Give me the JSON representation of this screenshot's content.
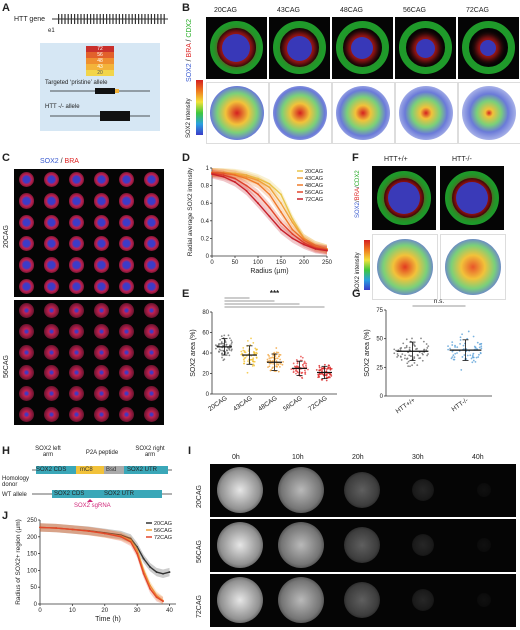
{
  "panels": {
    "A": {
      "letter": "A",
      "gene_label": "HTT gene",
      "exon_label": "e1",
      "cag_values": [
        "72",
        "56",
        "48",
        "43",
        "20"
      ],
      "allele_pristine": "Targeted ‘pristine’ allele",
      "allele_null": "HTT -/- allele"
    },
    "B": {
      "letter": "B",
      "columns": [
        "20CAG",
        "43CAG",
        "48CAG",
        "56CAG",
        "72CAG"
      ],
      "stain_sox2": "SOX2",
      "stain_bra": "BRA",
      "stain_cdx2": "CDX2",
      "heat_label": "SOX2 intensity"
    },
    "C": {
      "letter": "C",
      "stain_sox2": "SOX2",
      "stain_sep": " / ",
      "stain_bra": "BRA",
      "row_top": "20CAG",
      "row_bottom": "56CAG"
    },
    "D": {
      "letter": "D"
    },
    "E": {
      "letter": "E"
    },
    "F": {
      "letter": "F",
      "col1": "HTT+/+",
      "col2": "HTT-/-",
      "stain_sox2": "SOX2",
      "stain_bra": "BRA",
      "stain_cdx2": "CDX2",
      "heat_label": "SOX2 intensity"
    },
    "G": {
      "letter": "G"
    },
    "H": {
      "letter": "H",
      "left_arm": "SOX2 left arm",
      "p2a": "P2A peptide",
      "right_arm": "SOX2 right arm",
      "seg_cds": "SOX2 CDS",
      "seg_mc": "mC8",
      "seg_bsd": "Bsd",
      "seg_utr": "SOX2 UTR",
      "donor": "Homology donor",
      "wt": "WT allele",
      "wt_cds": "SOX2 CDS",
      "wt_utr": "SOX2 UTR",
      "sgrna": "SOX2 sgRNA"
    },
    "I": {
      "letter": "I",
      "times": [
        "0h",
        "10h",
        "20h",
        "30h",
        "40h"
      ],
      "rows": [
        "20CAG",
        "56CAG",
        "72CAG"
      ]
    },
    "J": {
      "letter": "J"
    }
  },
  "chart_data": [
    {
      "panel": "D",
      "type": "line",
      "xlabel": "Radius (µm)",
      "ylabel": "Radial average SOX2 intensity",
      "xlim": [
        0,
        250
      ],
      "ylim": [
        0,
        1.0
      ],
      "xticks": [
        0,
        50,
        100,
        150,
        200,
        250
      ],
      "yticks": [
        0,
        0.2,
        0.4,
        0.6,
        0.8,
        1.0
      ],
      "legend_position": "top-right",
      "series": [
        {
          "name": "20CAG",
          "color": "#e8c64a",
          "x": [
            0,
            25,
            50,
            75,
            100,
            125,
            150,
            175,
            200,
            225,
            250
          ],
          "y": [
            0.95,
            0.95,
            0.94,
            0.92,
            0.88,
            0.82,
            0.7,
            0.42,
            0.2,
            0.12,
            0.08
          ]
        },
        {
          "name": "43CAG",
          "color": "#f0a23a",
          "x": [
            0,
            25,
            50,
            75,
            100,
            125,
            150,
            175,
            200,
            225,
            250
          ],
          "y": [
            0.95,
            0.94,
            0.93,
            0.9,
            0.86,
            0.78,
            0.6,
            0.38,
            0.2,
            0.12,
            0.08
          ]
        },
        {
          "name": "48CAG",
          "color": "#ef7a2a",
          "x": [
            0,
            25,
            50,
            75,
            100,
            125,
            150,
            175,
            200,
            225,
            250
          ],
          "y": [
            0.95,
            0.94,
            0.92,
            0.88,
            0.82,
            0.7,
            0.5,
            0.3,
            0.18,
            0.1,
            0.07
          ]
        },
        {
          "name": "56CAG",
          "color": "#e2462a",
          "x": [
            0,
            25,
            50,
            75,
            100,
            125,
            150,
            175,
            200,
            225,
            250
          ],
          "y": [
            0.94,
            0.92,
            0.88,
            0.8,
            0.7,
            0.55,
            0.38,
            0.25,
            0.15,
            0.09,
            0.07
          ]
        },
        {
          "name": "72CAG",
          "color": "#c8202a",
          "x": [
            0,
            25,
            50,
            75,
            100,
            125,
            150,
            175,
            200,
            225,
            250
          ],
          "y": [
            0.93,
            0.9,
            0.84,
            0.74,
            0.6,
            0.45,
            0.3,
            0.2,
            0.13,
            0.08,
            0.06
          ]
        }
      ]
    },
    {
      "panel": "E",
      "type": "scatter",
      "ylabel": "SOX2 area (%)",
      "ylim": [
        0,
        80
      ],
      "yticks": [
        0,
        20,
        40,
        60,
        80
      ],
      "categories": [
        "20CAG",
        "43CAG",
        "48CAG",
        "56CAG",
        "72CAG"
      ],
      "means": [
        46,
        38,
        31,
        25,
        21
      ],
      "sds": [
        8,
        9,
        8,
        7,
        6
      ],
      "colors": [
        "#6b6b6b",
        "#f2c230",
        "#f3a33a",
        "#e84a4a",
        "#d82020"
      ],
      "significance": "***"
    },
    {
      "panel": "G",
      "type": "scatter",
      "ylabel": "SOX2 area (%)",
      "ylim": [
        0,
        75
      ],
      "yticks": [
        0,
        25,
        50,
        75
      ],
      "categories": [
        "HTT+/+",
        "HTT-/-"
      ],
      "means": [
        39,
        40
      ],
      "sds": [
        8,
        9
      ],
      "colors": [
        "#6b6b6b",
        "#5aa0d8"
      ],
      "significance": "n.s."
    },
    {
      "panel": "J",
      "type": "line",
      "xlabel": "Time (h)",
      "ylabel": "Radius of SOX2+ region (µm)",
      "xlim": [
        0,
        42
      ],
      "ylim": [
        0,
        250
      ],
      "xticks": [
        0,
        10,
        20,
        30,
        40
      ],
      "yticks": [
        0,
        50,
        100,
        150,
        200,
        250
      ],
      "legend_position": "top-right",
      "series": [
        {
          "name": "20CAG",
          "color": "#333333",
          "x": [
            0,
            5,
            10,
            15,
            20,
            25,
            28,
            30,
            32,
            34,
            36,
            38,
            40
          ],
          "y": [
            228,
            226,
            222,
            218,
            212,
            205,
            195,
            170,
            135,
            110,
            95,
            90,
            95
          ]
        },
        {
          "name": "56CAG",
          "color": "#f0a23a",
          "x": [
            0,
            5,
            10,
            15,
            20,
            25,
            28,
            30,
            32,
            34,
            36,
            38
          ],
          "y": [
            228,
            226,
            222,
            217,
            210,
            202,
            190,
            160,
            100,
            55,
            25,
            10
          ]
        },
        {
          "name": "72CAG",
          "color": "#e2462a",
          "x": [
            0,
            5,
            10,
            15,
            20,
            25,
            28,
            30,
            32,
            34,
            36,
            38
          ],
          "y": [
            228,
            226,
            222,
            217,
            210,
            200,
            185,
            150,
            90,
            45,
            20,
            8
          ]
        }
      ]
    }
  ]
}
